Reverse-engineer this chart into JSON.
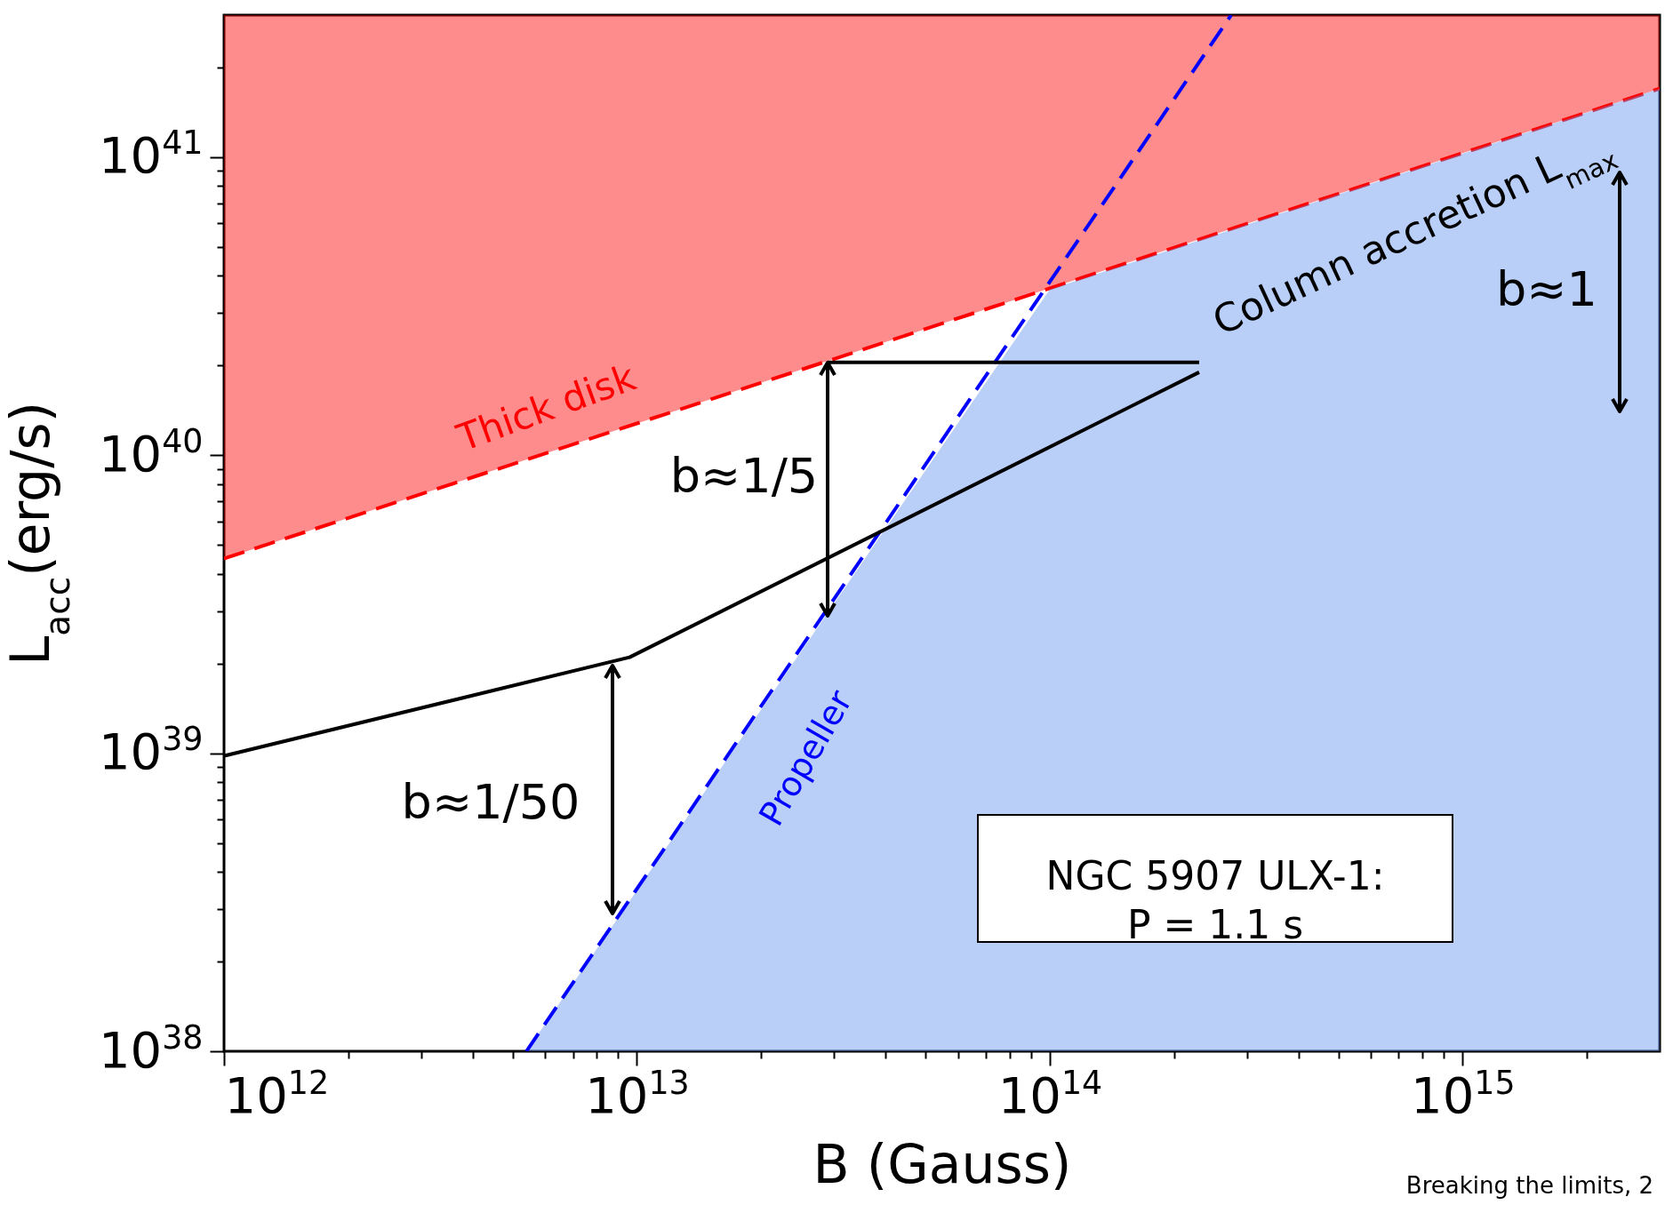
{
  "chart_data": {
    "type": "line",
    "xlabel": "B (Gauss)",
    "ylabel": "L$_{acc}$(erg/s)",
    "log": "xy",
    "xlim": [
      1000000000000.0,
      3000000000000000.0
    ],
    "ylim": [
      1e+38,
      3e+41
    ],
    "xticks": [
      {
        "value": 1000000000000.0,
        "label": "10$^{12}$"
      },
      {
        "value": 2000000000000.0,
        "label": null
      },
      {
        "value": 3000000000000.0,
        "label": null
      },
      {
        "value": 4000000000000.0,
        "label": null
      },
      {
        "value": 5000000000000.0,
        "label": null
      },
      {
        "value": 6000000000000.0,
        "label": null
      },
      {
        "value": 7000000000000.0,
        "label": null
      },
      {
        "value": 8000000000000.0,
        "label": null
      },
      {
        "value": 9000000000000.0,
        "label": null
      },
      {
        "value": 10000000000000.0,
        "label": "10$^{13}$"
      },
      {
        "value": 20000000000000.0,
        "label": null
      },
      {
        "value": 30000000000000.0,
        "label": null
      },
      {
        "value": 40000000000000.0,
        "label": null
      },
      {
        "value": 50000000000000.0,
        "label": null
      },
      {
        "value": 60000000000000.0,
        "label": null
      },
      {
        "value": 70000000000000.0,
        "label": null
      },
      {
        "value": 80000000000000.0,
        "label": null
      },
      {
        "value": 90000000000000.0,
        "label": null
      },
      {
        "value": 100000000000000.0,
        "label": "10$^{14}$"
      },
      {
        "value": 200000000000000.0,
        "label": null
      },
      {
        "value": 300000000000000.0,
        "label": null
      },
      {
        "value": 400000000000000.0,
        "label": null
      },
      {
        "value": 500000000000000.0,
        "label": null
      },
      {
        "value": 600000000000000.0,
        "label": null
      },
      {
        "value": 700000000000000.0,
        "label": null
      },
      {
        "value": 800000000000000.0,
        "label": null
      },
      {
        "value": 900000000000000.0,
        "label": null
      },
      {
        "value": 1000000000000000.0,
        "label": "10$^{15}$"
      },
      {
        "value": 2000000000000000.0,
        "label": null
      }
    ],
    "yticks": [
      {
        "value": 1e+38,
        "label": "10$^{38}$"
      },
      {
        "value": 2e+38,
        "label": null
      },
      {
        "value": 3e+38,
        "label": null
      },
      {
        "value": 4e+38,
        "label": null
      },
      {
        "value": 5e+38,
        "label": null
      },
      {
        "value": 6e+38,
        "label": null
      },
      {
        "value": 7e+38,
        "label": null
      },
      {
        "value": 8e+38,
        "label": null
      },
      {
        "value": 9e+38,
        "label": null
      },
      {
        "value": 1e+39,
        "label": "10$^{39}$"
      },
      {
        "value": 2e+39,
        "label": null
      },
      {
        "value": 3e+39,
        "label": null
      },
      {
        "value": 4e+39,
        "label": null
      },
      {
        "value": 5e+39,
        "label": null
      },
      {
        "value": 6e+39,
        "label": null
      },
      {
        "value": 7e+39,
        "label": null
      },
      {
        "value": 8e+39,
        "label": null
      },
      {
        "value": 9e+39,
        "label": null
      },
      {
        "value": 1e+40,
        "label": "10$^{40}$"
      },
      {
        "value": 2e+40,
        "label": null
      },
      {
        "value": 3e+40,
        "label": null
      },
      {
        "value": 4e+40,
        "label": null
      },
      {
        "value": 5e+40,
        "label": null
      },
      {
        "value": 6e+40,
        "label": null
      },
      {
        "value": 7e+40,
        "label": null
      },
      {
        "value": 8e+40,
        "label": null
      },
      {
        "value": 9e+40,
        "label": null
      },
      {
        "value": 1e+41,
        "label": "10$^{41}$"
      },
      {
        "value": 2e+41,
        "label": null
      }
    ],
    "series": [
      {
        "type": "line",
        "x": [
          1000000000000.0,
          3000000000000000.0
        ],
        "values": [
          4.5e+39,
          1.7e+41
        ],
        "lower": [
          4.5e+39,
          1.7e+41
        ],
        "upper": [
          3e+41,
          3e+41
        ],
        "color": "#ff0000",
        "line_style": "dashed"
      },
      {
        "type": "area",
        "x": [
          5400000000000.0,
          100000000000000.0,
          3000000000000000.0
        ],
        "values": [
          1e+38,
          3.6e+40,
          1.7e+41
        ],
        "color": "#6495ed"
      },
      {
        "type": "line",
        "x": [
          5400000000000.0,
          275000000000000.0
        ],
        "values": [
          1e+38,
          3e+41
        ],
        "color": "#0000ff",
        "line_style": "dashed"
      },
      {
        "type": "line",
        "x": [
          1000000000000.0,
          9600000000000.0,
          230000000000000.0
        ],
        "values": [
          9.8e+38,
          2.1e+39,
          1.9e+40
        ],
        "color": "#000000",
        "line_style": "solid"
      },
      {
        "type": "line",
        "x": [
          29000000000000.0,
          230000000000000.0
        ],
        "values": [
          2.05e+40,
          2.05e+40
        ],
        "color": "#000000",
        "line_style": "solid"
      }
    ],
    "annotations": [
      "Thick disk",
      "Column accretion L$_{max}$",
      "Propeller",
      "b≈1/50",
      "b≈1/5",
      "b≈1",
      "NGC 5907 ULX-1:\nP = 1.1 s",
      "Breaking the limits, 2"
    ]
  }
}
